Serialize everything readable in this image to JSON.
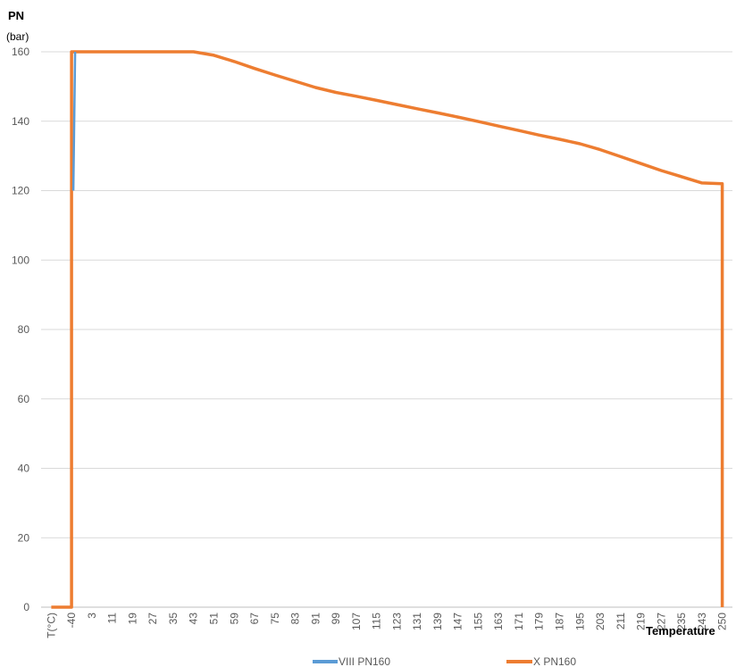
{
  "chart_data": {
    "type": "line",
    "ylabel": "PN",
    "yunit": "(bar)",
    "xlabel": "Temperature",
    "ylim": [
      0,
      160
    ],
    "yticks": [
      0,
      20,
      40,
      60,
      80,
      100,
      120,
      140,
      160
    ],
    "grid": true,
    "legend_position": "bottom",
    "categories": [
      "T(°C)",
      "-40",
      "3",
      "11",
      "19",
      "27",
      "35",
      "43",
      "51",
      "59",
      "67",
      "75",
      "83",
      "91",
      "99",
      "107",
      "115",
      "123",
      "131",
      "139",
      "147",
      "155",
      "163",
      "171",
      "179",
      "187",
      "195",
      "203",
      "211",
      "219",
      "227",
      "235",
      "243",
      "250"
    ],
    "series": [
      {
        "name": "VIII PN160",
        "color": "#5B9BD5",
        "points": [
          {
            "x": "-40",
            "y": 120
          },
          {
            "x": "-40",
            "y": 160
          }
        ]
      },
      {
        "name": "X PN160",
        "color": "#ED7D31",
        "points": [
          {
            "x": "T(°C)",
            "y": 0
          },
          {
            "x": "-40",
            "y": 0
          },
          {
            "x": "-40",
            "y": 160
          },
          {
            "x": "3",
            "y": 160
          },
          {
            "x": "11",
            "y": 160
          },
          {
            "x": "19",
            "y": 160
          },
          {
            "x": "27",
            "y": 160
          },
          {
            "x": "35",
            "y": 160
          },
          {
            "x": "43",
            "y": 160
          },
          {
            "x": "51",
            "y": 159
          },
          {
            "x": "59",
            "y": 157.2
          },
          {
            "x": "67",
            "y": 155.2
          },
          {
            "x": "75",
            "y": 153.3
          },
          {
            "x": "83",
            "y": 151.5
          },
          {
            "x": "91",
            "y": 149.7
          },
          {
            "x": "99",
            "y": 148.3
          },
          {
            "x": "107",
            "y": 147.2
          },
          {
            "x": "115",
            "y": 146
          },
          {
            "x": "123",
            "y": 144.8
          },
          {
            "x": "131",
            "y": 143.6
          },
          {
            "x": "139",
            "y": 142.4
          },
          {
            "x": "147",
            "y": 141.2
          },
          {
            "x": "155",
            "y": 139.9
          },
          {
            "x": "163",
            "y": 138.6
          },
          {
            "x": "171",
            "y": 137.3
          },
          {
            "x": "179",
            "y": 136
          },
          {
            "x": "187",
            "y": 134.8
          },
          {
            "x": "195",
            "y": 133.5
          },
          {
            "x": "203",
            "y": 131.8
          },
          {
            "x": "211",
            "y": 129.8
          },
          {
            "x": "219",
            "y": 127.8
          },
          {
            "x": "227",
            "y": 125.8
          },
          {
            "x": "235",
            "y": 124
          },
          {
            "x": "243",
            "y": 122.2
          },
          {
            "x": "250",
            "y": 122
          },
          {
            "x": "250",
            "y": 0
          }
        ]
      }
    ]
  }
}
